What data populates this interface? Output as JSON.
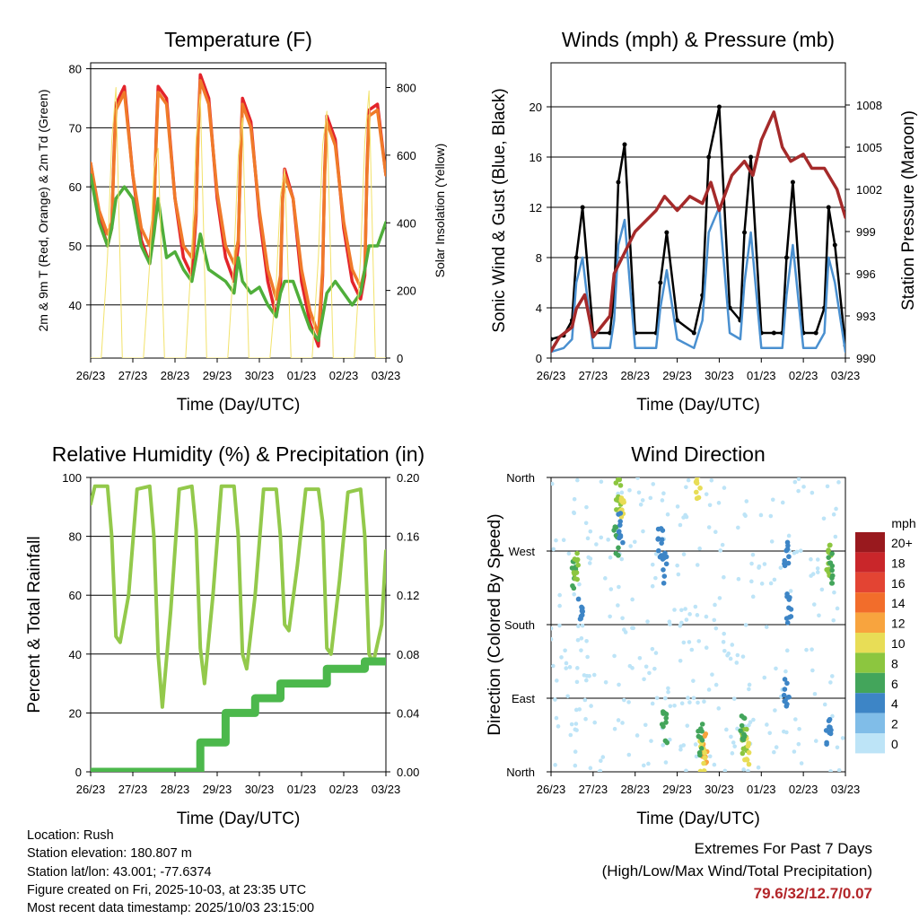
{
  "x_ticks": [
    "26/23",
    "27/23",
    "28/23",
    "29/23",
    "30/23",
    "01/23",
    "02/23",
    "03/23"
  ],
  "time_label": "Time (Day/UTC)",
  "chart_data": [
    {
      "id": "temperature",
      "type": "line",
      "title": "Temperature (F)",
      "ylabel": "2m & 9m T (Red, Orange) & 2m Td (Green)",
      "y2label": "Solar Insolation (Yellow)",
      "xlabel": "Time (Day/UTC)",
      "ylim": [
        31,
        81
      ],
      "yticks": [
        40,
        50,
        60,
        70,
        80
      ],
      "y2lim": [
        0,
        873
      ],
      "y2ticks": [
        0,
        200,
        400,
        600,
        800
      ],
      "series": [
        {
          "name": "2m T",
          "color": "#e3242b",
          "x": [
            0,
            0.2,
            0.4,
            0.5,
            0.55,
            0.6,
            0.8,
            1.0,
            1.2,
            1.4,
            1.5,
            1.55,
            1.6,
            1.8,
            2.0,
            2.2,
            2.4,
            2.5,
            2.55,
            2.6,
            2.8,
            3.0,
            3.2,
            3.4,
            3.5,
            3.55,
            3.6,
            3.8,
            4.0,
            4.2,
            4.4,
            4.5,
            4.55,
            4.6,
            4.8,
            5.0,
            5.2,
            5.4,
            5.5,
            5.55,
            5.6,
            5.8,
            6.0,
            6.2,
            6.4,
            6.5,
            6.55,
            6.6,
            6.8,
            7.0
          ],
          "values": [
            64,
            55,
            50,
            53,
            65,
            74,
            77,
            62,
            51,
            47,
            55,
            68,
            77,
            75,
            58,
            48,
            45,
            55,
            70,
            79,
            75,
            58,
            48,
            44,
            50,
            65,
            75,
            71,
            55,
            44,
            38,
            43,
            58,
            63,
            58,
            44,
            37,
            33,
            45,
            63,
            72,
            68,
            53,
            44,
            41,
            45,
            63,
            73,
            74,
            62
          ]
        },
        {
          "name": "9m T",
          "color": "#f07a2a",
          "x": [
            0,
            0.2,
            0.4,
            0.5,
            0.55,
            0.6,
            0.8,
            1.0,
            1.2,
            1.4,
            1.5,
            1.55,
            1.6,
            1.8,
            2.0,
            2.2,
            2.4,
            2.5,
            2.55,
            2.6,
            2.8,
            3.0,
            3.2,
            3.4,
            3.5,
            3.55,
            3.6,
            3.8,
            4.0,
            4.2,
            4.4,
            4.5,
            4.55,
            4.6,
            4.8,
            5.0,
            5.2,
            5.4,
            5.5,
            5.55,
            5.6,
            5.8,
            6.0,
            6.2,
            6.4,
            6.5,
            6.55,
            6.6,
            6.8,
            7.0
          ],
          "values": [
            64,
            56,
            52,
            54,
            64,
            73,
            76,
            62,
            53,
            50,
            56,
            67,
            76,
            74,
            58,
            50,
            48,
            56,
            69,
            78,
            74,
            59,
            50,
            47,
            51,
            64,
            74,
            70,
            56,
            46,
            41,
            45,
            58,
            62,
            58,
            46,
            39,
            35,
            46,
            62,
            71,
            67,
            54,
            46,
            43,
            46,
            62,
            72,
            73,
            62
          ]
        },
        {
          "name": "2m Td",
          "color": "#4fae3a",
          "x": [
            0,
            0.2,
            0.4,
            0.5,
            0.6,
            0.8,
            1.0,
            1.2,
            1.4,
            1.5,
            1.6,
            1.8,
            2.0,
            2.2,
            2.4,
            2.5,
            2.6,
            2.8,
            3.0,
            3.2,
            3.4,
            3.5,
            3.6,
            3.8,
            4.0,
            4.2,
            4.4,
            4.5,
            4.6,
            4.8,
            5.0,
            5.2,
            5.4,
            5.5,
            5.6,
            5.8,
            6.0,
            6.2,
            6.4,
            6.5,
            6.6,
            6.8,
            7.0
          ],
          "values": [
            62,
            54,
            50,
            53,
            58,
            60,
            58,
            50,
            47,
            52,
            58,
            48,
            49,
            46,
            44,
            48,
            52,
            46,
            45,
            44,
            42,
            48,
            44,
            42,
            43,
            40,
            38,
            42,
            44,
            44,
            40,
            36,
            34,
            38,
            42,
            44,
            42,
            40,
            42,
            46,
            50,
            50,
            54
          ]
        },
        {
          "name": "Solar Insolation",
          "color": "#f2e26a",
          "axis": "y2",
          "x": [
            0,
            0.25,
            0.4,
            0.5,
            0.6,
            0.75,
            1.25,
            1.4,
            1.5,
            1.6,
            1.75,
            2.25,
            2.4,
            2.5,
            2.6,
            2.75,
            3.25,
            3.4,
            3.5,
            3.6,
            3.75,
            4.25,
            4.4,
            4.5,
            4.6,
            4.75,
            5.25,
            5.4,
            5.5,
            5.6,
            5.75,
            6.25,
            6.4,
            6.5,
            6.6,
            6.75,
            7.0
          ],
          "values": [
            0,
            0,
            300,
            640,
            800,
            0,
            0,
            280,
            560,
            620,
            0,
            0,
            320,
            650,
            780,
            0,
            0,
            300,
            600,
            710,
            0,
            0,
            220,
            480,
            560,
            0,
            0,
            300,
            630,
            730,
            0,
            0,
            300,
            640,
            790,
            0,
            0
          ]
        }
      ]
    },
    {
      "id": "winds",
      "type": "line",
      "title": "Winds (mph) & Pressure (mb)",
      "ylabel": "Sonic Wind & Gust (Blue, Black)",
      "y2label": "Station Pressure (Maroon)",
      "xlabel": "Time (Day/UTC)",
      "ylim": [
        0,
        23.5
      ],
      "yticks": [
        0,
        4,
        8,
        12,
        16,
        20
      ],
      "y2lim": [
        990,
        1011
      ],
      "y2ticks": [
        990,
        993,
        996,
        999,
        1002,
        1005,
        1008
      ],
      "series": [
        {
          "name": "Gust",
          "color": "#000000",
          "x": [
            0,
            0.3,
            0.5,
            0.6,
            0.75,
            1.0,
            1.4,
            1.5,
            1.6,
            1.75,
            2.0,
            2.5,
            2.6,
            2.75,
            3.0,
            3.4,
            3.6,
            3.75,
            4.0,
            4.25,
            4.5,
            4.6,
            4.75,
            5.0,
            5.3,
            5.5,
            5.6,
            5.75,
            6.0,
            6.3,
            6.5,
            6.6,
            6.75,
            7.0
          ],
          "values": [
            1.5,
            1.8,
            3,
            8,
            12,
            2,
            2,
            5,
            14,
            17,
            2,
            2,
            6,
            10,
            3,
            2,
            5,
            16,
            20,
            4,
            3,
            10,
            16,
            2,
            2,
            2,
            8,
            14,
            2,
            2,
            4,
            12,
            9,
            1
          ]
        },
        {
          "name": "Wind",
          "color": "#4a90d0",
          "x": [
            0,
            0.3,
            0.5,
            0.6,
            0.75,
            1.0,
            1.4,
            1.5,
            1.6,
            1.75,
            2.0,
            2.5,
            2.6,
            2.75,
            3.0,
            3.4,
            3.6,
            3.75,
            4.0,
            4.25,
            4.5,
            4.6,
            4.75,
            5.0,
            5.3,
            5.5,
            5.6,
            5.75,
            6.0,
            6.3,
            6.5,
            6.6,
            6.75,
            7.0
          ],
          "values": [
            0.5,
            0.8,
            1.5,
            6,
            8,
            0.8,
            0.8,
            3,
            9,
            11,
            0.8,
            0.8,
            4,
            7,
            1.5,
            0.8,
            3,
            10,
            12,
            2,
            1.5,
            6,
            10,
            0.8,
            0.8,
            0.8,
            5,
            9,
            0.8,
            0.8,
            2,
            8,
            6,
            0.5
          ]
        },
        {
          "name": "Station Pressure",
          "color": "#a52a2a",
          "axis": "y2",
          "x": [
            0,
            0.2,
            0.5,
            0.6,
            0.8,
            1.0,
            1.4,
            1.5,
            2.0,
            2.5,
            2.7,
            3.0,
            3.3,
            3.6,
            3.8,
            4.0,
            4.3,
            4.6,
            4.8,
            5.0,
            5.3,
            5.5,
            5.7,
            6.0,
            6.2,
            6.5,
            6.8,
            7.0
          ],
          "values": [
            990.5,
            991.5,
            992.2,
            993.5,
            994.5,
            991.5,
            993,
            996,
            999,
            1000.5,
            1001.5,
            1000.5,
            1001.5,
            1001,
            1002.5,
            1000.5,
            1003,
            1004,
            1003,
            1005.5,
            1007.5,
            1005,
            1004,
            1004.5,
            1003.5,
            1003.5,
            1002,
            1000
          ]
        }
      ]
    },
    {
      "id": "humidity",
      "type": "line",
      "title": "Relative Humidity (%) & Precipitation (in)",
      "ylabel": "Percent & Total Rainfall",
      "xlabel": "Time (Day/UTC)",
      "ylim": [
        0,
        100
      ],
      "yticks": [
        0,
        20,
        40,
        60,
        80,
        100
      ],
      "y2lim": [
        0,
        0.2
      ],
      "y2ticks": [
        "0.00",
        "0.04",
        "0.08",
        "0.12",
        "0.16",
        "0.20"
      ],
      "series": [
        {
          "name": "Relative Humidity",
          "color": "#93c94b",
          "x": [
            0,
            0.1,
            0.4,
            0.5,
            0.6,
            0.7,
            0.9,
            1.1,
            1.4,
            1.5,
            1.6,
            1.7,
            1.9,
            2.1,
            2.4,
            2.5,
            2.6,
            2.7,
            2.9,
            3.1,
            3.4,
            3.5,
            3.6,
            3.7,
            3.9,
            4.1,
            4.4,
            4.5,
            4.6,
            4.7,
            4.9,
            5.1,
            5.4,
            5.5,
            5.6,
            5.7,
            5.9,
            6.1,
            6.4,
            6.5,
            6.6,
            6.7,
            6.9,
            7.0
          ],
          "values": [
            91,
            97,
            97,
            80,
            46,
            44,
            60,
            96,
            97,
            80,
            40,
            22,
            55,
            96,
            97,
            82,
            42,
            30,
            60,
            97,
            97,
            80,
            40,
            35,
            60,
            96,
            96,
            80,
            50,
            48,
            70,
            96,
            96,
            85,
            42,
            40,
            65,
            95,
            96,
            80,
            40,
            37,
            50,
            75
          ]
        },
        {
          "name": "Total Precipitation",
          "color": "#4cb84c",
          "axis": "y2",
          "x": [
            0,
            2.6,
            2.6,
            3.2,
            3.2,
            3.9,
            3.9,
            4.5,
            4.5,
            5.6,
            5.6,
            6.5,
            6.5,
            7.0
          ],
          "values": [
            0,
            0,
            0.02,
            0.02,
            0.04,
            0.04,
            0.05,
            0.05,
            0.06,
            0.06,
            0.07,
            0.07,
            0.075,
            0.075
          ]
        }
      ]
    },
    {
      "id": "wind-direction",
      "type": "scatter",
      "title": "Wind Direction",
      "ylabel": "Direction (Colored By Speed)",
      "xlabel": "Time (Day/UTC)",
      "ylim": [
        0,
        360
      ],
      "yticks": [
        "North",
        "East",
        "South",
        "West",
        "North"
      ],
      "legend": {
        "title": "mph",
        "labels": [
          "20+",
          "18",
          "16",
          "14",
          "12",
          "10",
          "8",
          "6",
          "4",
          "2",
          "0"
        ],
        "colors": [
          "#99191e",
          "#c9262a",
          "#e34433",
          "#f26d2b",
          "#f8a43e",
          "#e8dd56",
          "#8cc63f",
          "#43a55b",
          "#3d85c6",
          "#80bde8",
          "#bde4f7"
        ]
      },
      "clusters": [
        {
          "x": 0.55,
          "dir": 240,
          "speed": 6
        },
        {
          "x": 0.6,
          "dir": 250,
          "speed": 8
        },
        {
          "x": 0.7,
          "dir": 200,
          "speed": 4
        },
        {
          "x": 1.6,
          "dir": 340,
          "speed": 8
        },
        {
          "x": 1.7,
          "dir": 330,
          "speed": 10
        },
        {
          "x": 1.55,
          "dir": 280,
          "speed": 6
        },
        {
          "x": 1.65,
          "dir": 300,
          "speed": 4
        },
        {
          "x": 2.6,
          "dir": 280,
          "speed": 4
        },
        {
          "x": 2.7,
          "dir": 250,
          "speed": 4
        },
        {
          "x": 2.7,
          "dir": 55,
          "speed": 6
        },
        {
          "x": 3.65,
          "dir": 30,
          "speed": 12
        },
        {
          "x": 3.6,
          "dir": 20,
          "speed": 10
        },
        {
          "x": 3.55,
          "dir": 40,
          "speed": 6
        },
        {
          "x": 4.6,
          "dir": 40,
          "speed": 8
        },
        {
          "x": 4.65,
          "dir": 25,
          "speed": 10
        },
        {
          "x": 4.55,
          "dir": 55,
          "speed": 6
        },
        {
          "x": 5.6,
          "dir": 100,
          "speed": 4
        },
        {
          "x": 5.65,
          "dir": 200,
          "speed": 4
        },
        {
          "x": 5.6,
          "dir": 270,
          "speed": 4
        },
        {
          "x": 6.6,
          "dir": 260,
          "speed": 8
        },
        {
          "x": 6.65,
          "dir": 250,
          "speed": 6
        },
        {
          "x": 6.6,
          "dir": 45,
          "speed": 4
        },
        {
          "x": 3.5,
          "dir": 350,
          "speed": 10
        }
      ]
    }
  ],
  "station_info": {
    "location": "Location: Rush",
    "elevation": "Station elevation: 180.807 m",
    "latlon": "Station lat/lon: 43.001; -77.6374",
    "created": "Figure created on Fri, 2025-10-03, at 23:35 UTC",
    "recent": "Most recent data timestamp: 2025/10/03 23:15:00"
  },
  "extremes": {
    "title": "Extremes For Past 7 Days",
    "subtitle": "(High/Low/Max Wind/Total Precipitation)",
    "values": "79.6/32/12.7/0.07"
  }
}
